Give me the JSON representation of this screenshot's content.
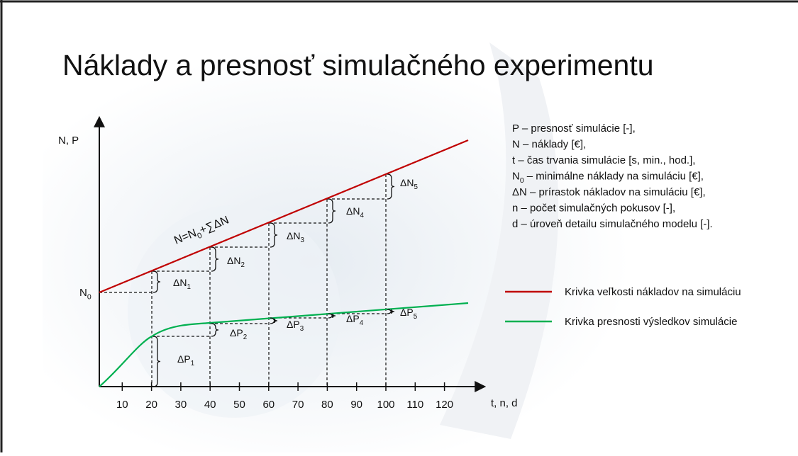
{
  "title": "Náklady a presnosť simulačného experimentu",
  "axes": {
    "y_label": "N, P",
    "x_label": "t, n, d",
    "x_ticks": [
      10,
      20,
      30,
      40,
      50,
      60,
      70,
      80,
      90,
      100,
      110,
      120
    ],
    "origin_label": {
      "base": "N",
      "sub": "0"
    }
  },
  "formula": {
    "pre": "N=N",
    "sub": "0",
    "post": "+∑ΔN"
  },
  "cost_increments": [
    {
      "base": "ΔN",
      "sub": "1"
    },
    {
      "base": "ΔN",
      "sub": "2"
    },
    {
      "base": "ΔN",
      "sub": "3"
    },
    {
      "base": "ΔN",
      "sub": "4"
    },
    {
      "base": "ΔN",
      "sub": "5"
    }
  ],
  "precision_increments": [
    {
      "base": "ΔP",
      "sub": "1"
    },
    {
      "base": "ΔP",
      "sub": "2"
    },
    {
      "base": "ΔP",
      "sub": "3"
    },
    {
      "base": "ΔP",
      "sub": "4"
    },
    {
      "base": "ΔP",
      "sub": "5"
    }
  ],
  "definitions": [
    {
      "text": "P – presnosť simulácie [-],"
    },
    {
      "text": "N – náklady [€],"
    },
    {
      "text": "t – čas trvania simulácie [s, min., hod.],"
    },
    {
      "base": "N",
      "sub": "0",
      "text": "– minimálne náklady na simuláciu [€],"
    },
    {
      "text": "ΔN – prírastok nákladov na simuláciu [€],"
    },
    {
      "text": "n – počet simulačných pokusov [-],"
    },
    {
      "text": "d – úroveň detailu simulačného modelu [-]."
    }
  ],
  "legend": [
    {
      "label": "Krivka veľkosti nákladov na simuláciu",
      "color": "#c00000"
    },
    {
      "label": "Krivka presnosti výsledkov simulácie",
      "color": "#00b050"
    }
  ]
}
